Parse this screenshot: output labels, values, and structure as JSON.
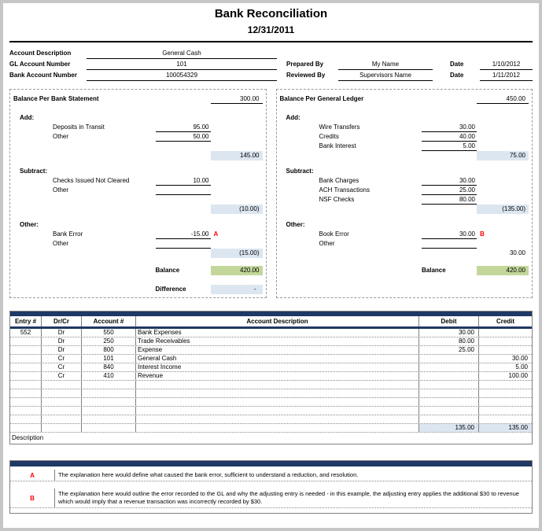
{
  "colors": {
    "navy": "#1F3864",
    "light_blue": "#DCE6F1",
    "green": "#C4D79B",
    "red": "#FF0000"
  },
  "header": {
    "title": "Bank Reconciliation",
    "date": "12/31/2011"
  },
  "info": {
    "account_description_label": "Account Description",
    "account_description": "General Cash",
    "gl_account_label": "GL Account Number",
    "gl_account": "101",
    "bank_account_label": "Bank Account Number",
    "bank_account": "100054329",
    "prepared_by_label": "Prepared By",
    "prepared_by": "My Name",
    "prepared_date_label": "Date",
    "prepared_date": "1/10/2012",
    "reviewed_by_label": "Reviewed By",
    "reviewed_by": "Supervisors Name",
    "reviewed_date_label": "Date",
    "reviewed_date": "1/11/2012"
  },
  "bank": {
    "title": "Balance Per Bank Statement",
    "opening_balance": "300.00",
    "add_label": "Add:",
    "add_items": [
      {
        "label": "Deposits in Transit",
        "value": "95.00"
      },
      {
        "label": "Other",
        "value": "50.00"
      }
    ],
    "add_subtotal": "145.00",
    "subtract_label": "Subtract:",
    "subtract_items": [
      {
        "label": "Checks Issued Not Cleared",
        "value": "10.00"
      },
      {
        "label": "Other",
        "value": ""
      }
    ],
    "subtract_subtotal": "(10.00)",
    "other_label": "Other:",
    "other_items": [
      {
        "label": "Bank Error",
        "value": "-15.00",
        "ref": "A"
      },
      {
        "label": "Other",
        "value": "",
        "ref": ""
      }
    ],
    "other_subtotal": "(15.00)",
    "balance_label": "Balance",
    "balance": "420.00",
    "difference_label": "Difference",
    "difference": "-"
  },
  "ledger": {
    "title": "Balance Per General Ledger",
    "opening_balance": "450.00",
    "add_label": "Add:",
    "add_items": [
      {
        "label": "Wire Transfers",
        "value": "30.00"
      },
      {
        "label": "Credits",
        "value": "40.00"
      },
      {
        "label": "Bank Interest",
        "value": "5.00"
      }
    ],
    "add_subtotal": "75.00",
    "subtract_label": "Subtract:",
    "subtract_items": [
      {
        "label": "Bank Charges",
        "value": "30.00"
      },
      {
        "label": "ACH Transactions",
        "value": "25.00"
      },
      {
        "label": "NSF Checks",
        "value": "80.00"
      }
    ],
    "subtract_subtotal": "(135.00)",
    "other_label": "Other:",
    "other_items": [
      {
        "label": "Book Error",
        "value": "30.00",
        "ref": "B"
      },
      {
        "label": "Other",
        "value": "",
        "ref": ""
      }
    ],
    "other_subtotal": "30.00",
    "balance_label": "Balance",
    "balance": "420.00"
  },
  "journal": {
    "headers": [
      "Entry #",
      "Dr/Cr",
      "Account #",
      "Account Description",
      "Debit",
      "Credit"
    ],
    "rows": [
      {
        "entry": "552",
        "drcr": "Dr",
        "account": "550",
        "description": "Bank Expenses",
        "debit": "30.00",
        "credit": ""
      },
      {
        "entry": "",
        "drcr": "Dr",
        "account": "250",
        "description": "Trade Receivables",
        "debit": "80.00",
        "credit": ""
      },
      {
        "entry": "",
        "drcr": "Dr",
        "account": "800",
        "description": "Expense",
        "debit": "25.00",
        "credit": ""
      },
      {
        "entry": "",
        "drcr": "Cr",
        "account": "101",
        "description": "General Cash",
        "debit": "",
        "credit": "30.00"
      },
      {
        "entry": "",
        "drcr": "Cr",
        "account": "840",
        "description": "Interest Income",
        "debit": "",
        "credit": "5.00"
      },
      {
        "entry": "",
        "drcr": "Cr",
        "account": "410",
        "description": "Revenue",
        "debit": "",
        "credit": "100.00"
      },
      {
        "entry": "",
        "drcr": "",
        "account": "",
        "description": "",
        "debit": "",
        "credit": ""
      },
      {
        "entry": "",
        "drcr": "",
        "account": "",
        "description": "",
        "debit": "",
        "credit": ""
      },
      {
        "entry": "",
        "drcr": "",
        "account": "",
        "description": "",
        "debit": "",
        "credit": ""
      },
      {
        "entry": "",
        "drcr": "",
        "account": "",
        "description": "",
        "debit": "",
        "credit": ""
      },
      {
        "entry": "",
        "drcr": "",
        "account": "",
        "description": "",
        "debit": "",
        "credit": ""
      }
    ],
    "total_debit": "135.00",
    "total_credit": "135.00",
    "description_label": "Description"
  },
  "notes": [
    {
      "ref": "A",
      "text": "The explanation here would define what caused the bank error, sufficient to understand a reduction, and resolution."
    },
    {
      "ref": "B",
      "text": "The explanation here would outline the error recorded to the GL and why the adjusting entry is needed - in this example, the adjusting entry applies the additional $30 to revenue which would imply that a revenue transaction was incorrectly recorded by $30."
    }
  ]
}
